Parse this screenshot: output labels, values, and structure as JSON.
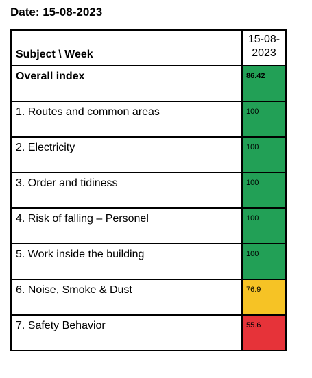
{
  "date_label": "Date: 15-08-2023",
  "table": {
    "header": {
      "subject": "Subject \\ Week",
      "week": "15-08-2023"
    },
    "rows": [
      {
        "subject": "Overall index",
        "value": "86.42",
        "bold": true,
        "color": "#22a056"
      },
      {
        "subject": "1. Routes and common areas",
        "value": "100",
        "bold": false,
        "color": "#22a056"
      },
      {
        "subject": "2. Electricity",
        "value": "100",
        "bold": false,
        "color": "#22a056"
      },
      {
        "subject": "3. Order and tidiness",
        "value": "100",
        "bold": false,
        "color": "#22a056"
      },
      {
        "subject": "4. Risk of falling – Personel",
        "value": "100",
        "bold": false,
        "color": "#22a056"
      },
      {
        "subject": "5. Work inside the building",
        "value": "100",
        "bold": false,
        "color": "#22a056"
      },
      {
        "subject": "6. Noise, Smoke & Dust",
        "value": "76.9",
        "bold": false,
        "color": "#f6c325"
      },
      {
        "subject": "7. Safety Behavior",
        "value": "55.6",
        "bold": false,
        "color": "#e63339"
      }
    ]
  }
}
